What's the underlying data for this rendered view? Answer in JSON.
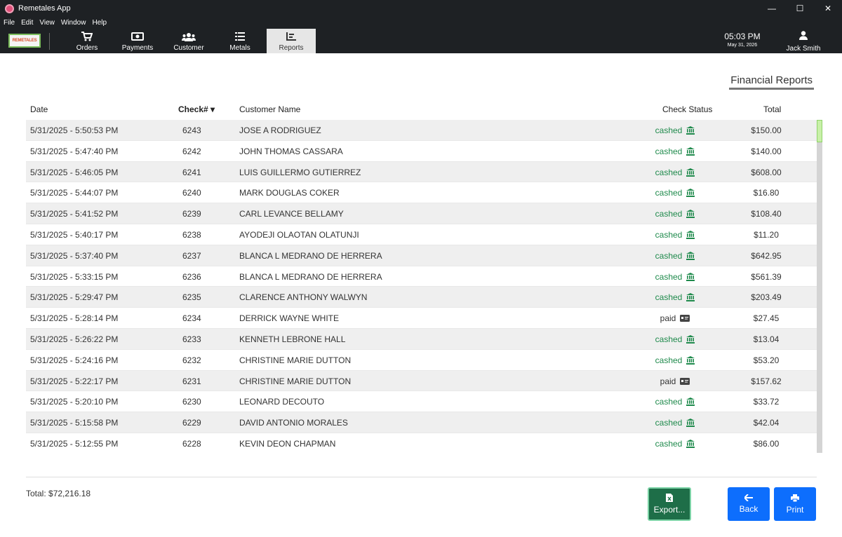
{
  "window": {
    "title": "Remetales App",
    "minimize": "—",
    "maximize": "☐",
    "close": "✕"
  },
  "menu": [
    "File",
    "Edit",
    "View",
    "Window",
    "Help"
  ],
  "logo_text": "REMETALES",
  "nav": {
    "tabs": [
      {
        "label": "Orders",
        "icon": "cart-icon"
      },
      {
        "label": "Payments",
        "icon": "money-icon"
      },
      {
        "label": "Customer",
        "icon": "users-icon"
      },
      {
        "label": "Metals",
        "icon": "list-icon"
      },
      {
        "label": "Reports",
        "icon": "chart-icon",
        "active": true
      }
    ],
    "time": "05:03 PM",
    "date": "May 31, 2026",
    "user": "Jack Smith"
  },
  "heading": "Financial Reports",
  "table": {
    "columns": {
      "date": "Date",
      "check": "Check#",
      "name": "Customer Name",
      "status": "Check Status",
      "total": "Total"
    },
    "rows": [
      {
        "date": "5/31/2025 - 5:50:53 PM",
        "check": "6243",
        "name": "JOSE A RODRIGUEZ",
        "status": "cashed",
        "total": "$150.00"
      },
      {
        "date": "5/31/2025 - 5:47:40 PM",
        "check": "6242",
        "name": "JOHN THOMAS CASSARA",
        "status": "cashed",
        "total": "$140.00"
      },
      {
        "date": "5/31/2025 - 5:46:05 PM",
        "check": "6241",
        "name": "LUIS GUILLERMO GUTIERREZ",
        "status": "cashed",
        "total": "$608.00"
      },
      {
        "date": "5/31/2025 - 5:44:07 PM",
        "check": "6240",
        "name": "MARK DOUGLAS COKER",
        "status": "cashed",
        "total": "$16.80"
      },
      {
        "date": "5/31/2025 - 5:41:52 PM",
        "check": "6239",
        "name": "CARL LEVANCE BELLAMY",
        "status": "cashed",
        "total": "$108.40"
      },
      {
        "date": "5/31/2025 - 5:40:17 PM",
        "check": "6238",
        "name": "AYODEJI OLAOTAN OLATUNJI",
        "status": "cashed",
        "total": "$11.20"
      },
      {
        "date": "5/31/2025 - 5:37:40 PM",
        "check": "6237",
        "name": "BLANCA L MEDRANO DE HERRERA",
        "status": "cashed",
        "total": "$642.95"
      },
      {
        "date": "5/31/2025 - 5:33:15 PM",
        "check": "6236",
        "name": "BLANCA L MEDRANO DE HERRERA",
        "status": "cashed",
        "total": "$561.39"
      },
      {
        "date": "5/31/2025 - 5:29:47 PM",
        "check": "6235",
        "name": "CLARENCE ANTHONY WALWYN",
        "status": "cashed",
        "total": "$203.49"
      },
      {
        "date": "5/31/2025 - 5:28:14 PM",
        "check": "6234",
        "name": "DERRICK WAYNE WHITE",
        "status": "paid",
        "total": "$27.45"
      },
      {
        "date": "5/31/2025 - 5:26:22 PM",
        "check": "6233",
        "name": "KENNETH LEBRONE HALL",
        "status": "cashed",
        "total": "$13.04"
      },
      {
        "date": "5/31/2025 - 5:24:16 PM",
        "check": "6232",
        "name": "CHRISTINE MARIE DUTTON",
        "status": "cashed",
        "total": "$53.20"
      },
      {
        "date": "5/31/2025 - 5:22:17 PM",
        "check": "6231",
        "name": "CHRISTINE MARIE DUTTON",
        "status": "paid",
        "total": "$157.62"
      },
      {
        "date": "5/31/2025 - 5:20:10 PM",
        "check": "6230",
        "name": "LEONARD DECOUTO",
        "status": "cashed",
        "total": "$33.72"
      },
      {
        "date": "5/31/2025 - 5:15:58 PM",
        "check": "6229",
        "name": "DAVID ANTONIO MORALES",
        "status": "cashed",
        "total": "$42.04"
      },
      {
        "date": "5/31/2025 - 5:12:55 PM",
        "check": "6228",
        "name": "KEVIN DEON CHAPMAN",
        "status": "cashed",
        "total": "$86.00"
      }
    ]
  },
  "total_label": "Total: $72,216.18",
  "buttons": {
    "export": "Export...",
    "back": "Back",
    "print": "Print"
  },
  "colors": {
    "cashed": "#1f8a4c",
    "accent": "#0d6efd",
    "export": "#1e6e48"
  }
}
